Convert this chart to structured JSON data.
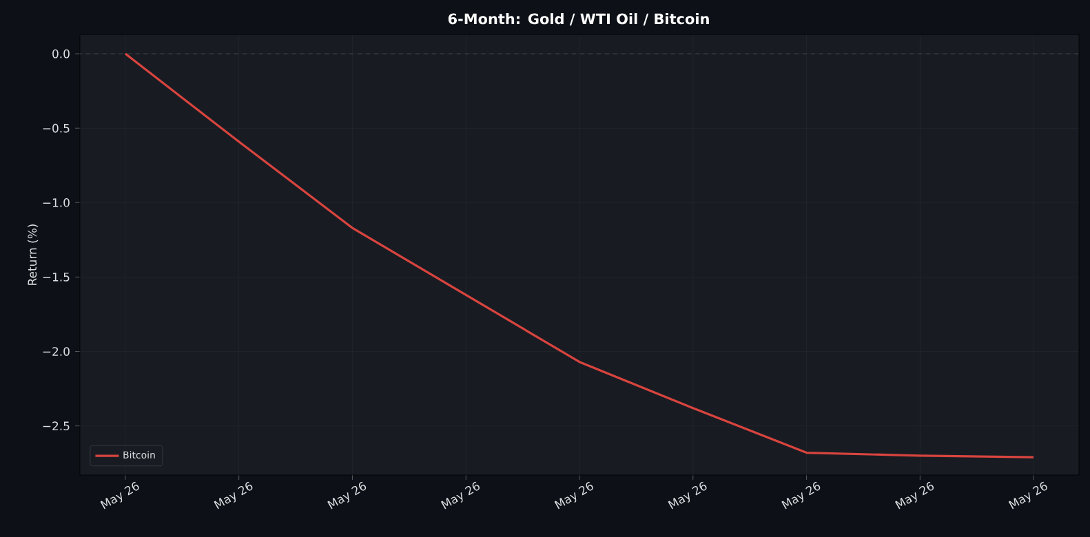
{
  "chart_data": {
    "type": "line",
    "title": "6-Month: Gold / WTI Oil / Bitcoin",
    "ylabel": "Return (%)",
    "categories": [
      "May 26",
      "May 26",
      "May 26",
      "May 26",
      "May 26",
      "May 26",
      "May 26",
      "May 26",
      "May 26"
    ],
    "series": [
      {
        "name": "Bitcoin",
        "color": "#d9443f",
        "values": [
          0.0,
          -0.59,
          -1.17,
          -1.62,
          -2.07,
          -2.38,
          -2.68,
          -2.7,
          -2.71
        ]
      }
    ],
    "ylim": [
      -2.83,
      0.13
    ],
    "yticks": [
      {
        "value": 0.0,
        "label": "0.0"
      },
      {
        "value": -0.5,
        "label": "−0.5"
      },
      {
        "value": -1.0,
        "label": "−1.0"
      },
      {
        "value": -1.5,
        "label": "−1.5"
      },
      {
        "value": -2.0,
        "label": "−2.0"
      },
      {
        "value": -2.5,
        "label": "−2.5"
      }
    ],
    "ref_lines": [
      {
        "axis": "y",
        "value": 0,
        "color": "#3a3f47",
        "line_style": "dashed"
      }
    ],
    "grid": true,
    "legend": "bottom left",
    "marker": "none",
    "line_style": "solid"
  }
}
